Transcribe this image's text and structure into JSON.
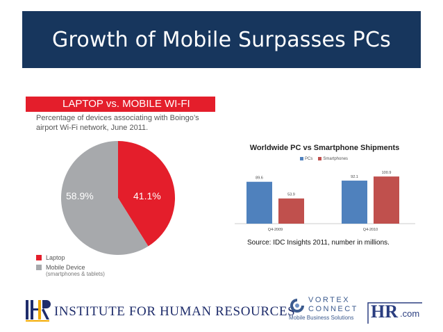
{
  "slide_title": "Growth of Mobile Surpasses PCs",
  "pie": {
    "header": "LAPTOP vs. MOBILE WI-FI",
    "subtitle": "Percentage of devices associating with Boingo’s airport Wi-Fi network, June 2011.",
    "legend": [
      {
        "label": "Laptop",
        "sub": ""
      },
      {
        "label": "Mobile Device",
        "sub": "(smartphones & tablets)"
      }
    ]
  },
  "bar": {
    "title": "Worldwide PC vs Smartphone Shipments",
    "legend_pcs": "PCs",
    "legend_smartphones": "Smartphones",
    "source": "Source: IDC  Insights 2011, number in millions."
  },
  "chart_data": [
    {
      "type": "pie",
      "title": "LAPTOP vs. MOBILE WI-FI",
      "slices": [
        {
          "label": "Laptop",
          "value": 41.1,
          "display": "41.1%",
          "color": "#e41e2b"
        },
        {
          "label": "Mobile Device",
          "value": 58.9,
          "display": "58.9%",
          "color": "#a7a9ac"
        }
      ]
    },
    {
      "type": "bar",
      "title": "Worldwide PC vs Smartphone Shipments",
      "categories": [
        "Q4-2009",
        "Q4-2010"
      ],
      "series": [
        {
          "name": "PCs",
          "values": [
            89.6,
            92.1
          ],
          "color": "#4f81bd"
        },
        {
          "name": "Smartphones",
          "values": [
            53.9,
            100.9
          ],
          "color": "#c0504d"
        }
      ],
      "ylim": [
        0,
        110
      ],
      "grid": false,
      "legend": "top-center"
    }
  ],
  "footer": {
    "ihr_mark": "IHR",
    "ihr_name": "INSTITUTE FOR HUMAN RESOURCES",
    "vortex_line1": "VORTEX",
    "vortex_line2": "CONNECT",
    "vortex_tagline": "Mobile Business Solutions",
    "hr_logo": "HR",
    "hr_logo_suffix": ".com"
  }
}
